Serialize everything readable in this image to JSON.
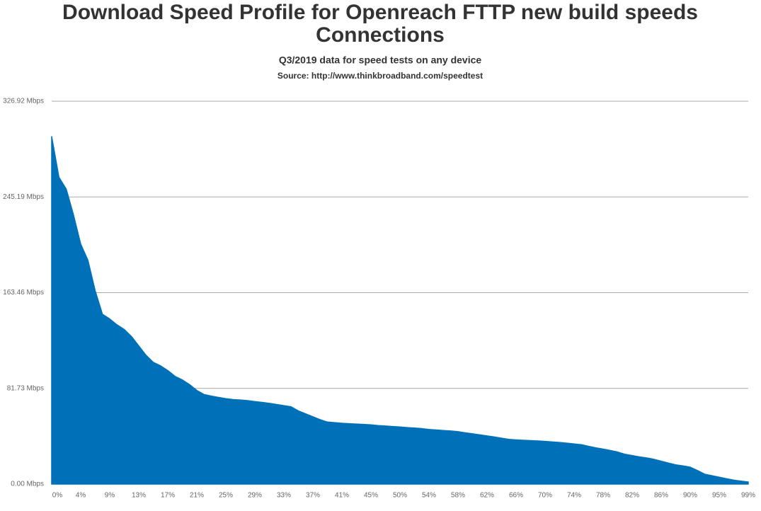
{
  "chart_data": {
    "type": "area",
    "title": "Download Speed Profile for Openreach FTTP new build speeds Connections",
    "subtitle": "Q3/2019 data for speed tests on any device",
    "source": "Source: http://www.thinkbroadband.com/speedtest",
    "color": "#0071b9",
    "grid": true,
    "ylim": [
      0,
      326.92
    ],
    "yticks": [
      {
        "value": 0,
        "label": "0.00 Mbps"
      },
      {
        "value": 81.73,
        "label": "81.73 Mbps"
      },
      {
        "value": 163.46,
        "label": "163.46 Mbps"
      },
      {
        "value": 245.19,
        "label": "245.19 Mbps"
      },
      {
        "value": 326.92,
        "label": "326.92 Mbps"
      }
    ],
    "categories": [
      "0%",
      null,
      null,
      null,
      "4%",
      null,
      null,
      null,
      "9%",
      null,
      null,
      null,
      "13%",
      null,
      null,
      null,
      "17%",
      null,
      null,
      null,
      "21%",
      null,
      null,
      null,
      "25%",
      null,
      null,
      null,
      "29%",
      null,
      null,
      null,
      "33%",
      null,
      null,
      null,
      "37%",
      null,
      null,
      null,
      "41%",
      null,
      null,
      null,
      "45%",
      null,
      null,
      null,
      "50%",
      null,
      null,
      null,
      "54%",
      null,
      null,
      null,
      "58%",
      null,
      null,
      null,
      "62%",
      null,
      null,
      null,
      "66%",
      null,
      null,
      null,
      "70%",
      null,
      null,
      null,
      "74%",
      null,
      null,
      null,
      "78%",
      null,
      null,
      null,
      "82%",
      null,
      null,
      null,
      "86%",
      null,
      null,
      null,
      "90%",
      null,
      null,
      null,
      "95%",
      null,
      null,
      null,
      "99%"
    ],
    "values": [
      296.7,
      262,
      252,
      230,
      205,
      191,
      165,
      145,
      141,
      136,
      132,
      126,
      118,
      110,
      104,
      101,
      97,
      92,
      89,
      85,
      80,
      76.5,
      75.2,
      74,
      73,
      72.2,
      71.8,
      71.3,
      70.5,
      69.8,
      69,
      68,
      67,
      66,
      62.5,
      60,
      57.5,
      55,
      53,
      52.5,
      52,
      51.6,
      51.3,
      51,
      50.6,
      50,
      49.6,
      49.2,
      48.8,
      48.3,
      47.9,
      47.4,
      46.7,
      46.2,
      45.8,
      45.4,
      44.8,
      43.8,
      43,
      42.1,
      41.2,
      40.3,
      39.2,
      38.2,
      37.8,
      37.5,
      37.2,
      36.9,
      36.5,
      36,
      35.6,
      35,
      34.3,
      33.7,
      32.3,
      31,
      29.9,
      28.7,
      27.4,
      25.5,
      24.4,
      23.3,
      22.4,
      21.2,
      19.6,
      18,
      16.5,
      15.6,
      14.5,
      11.6,
      8.5,
      7.2,
      5.9,
      4.6,
      3.4,
      2.6,
      1.8
    ]
  }
}
